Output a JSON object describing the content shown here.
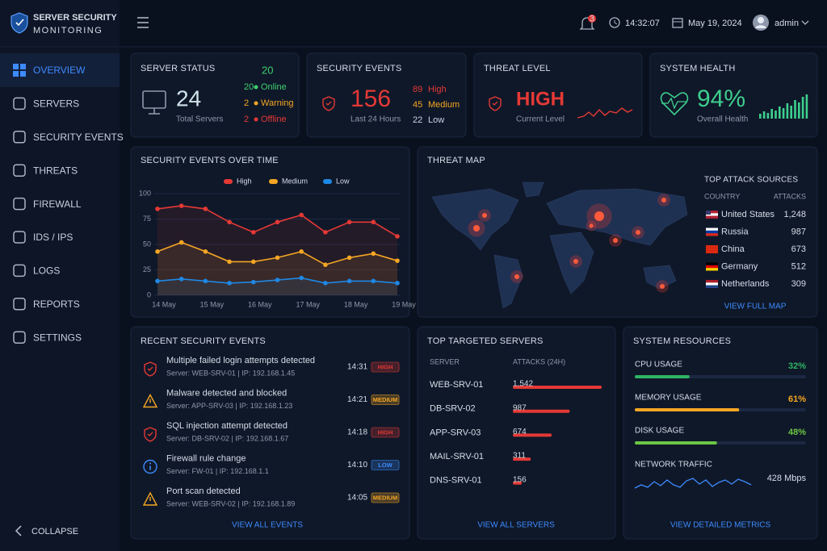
{
  "brand": {
    "title": "SERVER SECURITY",
    "subtitle": "MONITORING"
  },
  "topbar": {
    "notifications": "3",
    "time": "14:32:07",
    "date": "May 19, 2024",
    "user": "admin"
  },
  "nav": {
    "items": [
      "OVERVIEW",
      "SERVERS",
      "SECURITY EVENTS",
      "THREATS",
      "FIREWALL",
      "IDS / IPS",
      "LOGS",
      "REPORTS",
      "SETTINGS"
    ],
    "active": 0,
    "collapse": "COLLAPSE"
  },
  "server_status": {
    "title": "SERVER STATUS",
    "header": "20",
    "total": "24",
    "total_label": "Total Servers",
    "rows": [
      {
        "value": "20",
        "label": "Online",
        "color": "#3ecf6e"
      },
      {
        "value": "2",
        "label": "Warning",
        "color": "#f5a623"
      },
      {
        "value": "2",
        "label": "Offline",
        "color": "#e53935"
      }
    ]
  },
  "security_events": {
    "title": "SECURITY EVENTS",
    "total": "156",
    "total_label": "Last 24 Hours",
    "rows": [
      {
        "value": "89",
        "label": "High",
        "color": "#e53935"
      },
      {
        "value": "45",
        "label": "Medium",
        "color": "#f5a623"
      },
      {
        "value": "22",
        "label": "Low",
        "color": "#c8d4e6"
      }
    ]
  },
  "threat_level": {
    "title": "THREAT LEVEL",
    "value": "HIGH",
    "label": "Current Level"
  },
  "system_health": {
    "title": "SYSTEM HEALTH",
    "value": "94%",
    "label": "Overall Health"
  },
  "chart_data": {
    "type": "line",
    "title": "SECURITY EVENTS OVER TIME",
    "categories": [
      "14 May",
      null,
      "15 May",
      null,
      "16 May",
      null,
      "17 May",
      null,
      "18 May",
      null,
      "19 May"
    ],
    "series": [
      {
        "name": "High",
        "color": "#e53935",
        "values": [
          85,
          88,
          85,
          72,
          62,
          72,
          79,
          62,
          72,
          72,
          58
        ]
      },
      {
        "name": "Medium",
        "color": "#f5a623",
        "values": [
          43,
          52,
          43,
          33,
          33,
          37,
          43,
          30,
          37,
          41,
          34
        ]
      },
      {
        "name": "Low",
        "color": "#1e88e5",
        "values": [
          14,
          16,
          14,
          12,
          13,
          15,
          17,
          12,
          14,
          14,
          12
        ]
      }
    ],
    "ylim": [
      0,
      100
    ],
    "yticks": [
      0,
      25,
      50,
      75,
      100
    ],
    "grid": true,
    "legend": "top"
  },
  "threat_map": {
    "title": "THREAT MAP",
    "sources_title": "TOP ATTACK SOURCES",
    "columns": [
      "COUNTRY",
      "ATTACKS"
    ],
    "rows": [
      [
        "United States",
        "1,248"
      ],
      [
        "Russia",
        "987"
      ],
      [
        "China",
        "673"
      ],
      [
        "Germany",
        "512"
      ],
      [
        "Netherlands",
        "309"
      ]
    ],
    "link": "VIEW FULL MAP"
  },
  "recent_events": {
    "title": "RECENT SECURITY EVENTS",
    "link": "VIEW ALL EVENTS",
    "items": [
      {
        "title": "Multiple failed login attempts detected",
        "detail": "Server: WEB-SRV-01 | IP: 192.168.1.45",
        "time": "14:31",
        "severity": "HIGH",
        "color": "#e53935",
        "icon": "shield"
      },
      {
        "title": "Malware detected and blocked",
        "detail": "Server: APP-SRV-03 | IP: 192.168.1.23",
        "time": "14:21",
        "severity": "MEDIUM",
        "color": "#f5a623",
        "icon": "warning"
      },
      {
        "title": "SQL injection attempt detected",
        "detail": "Server: DB-SRV-02 | IP: 192.168.1.67",
        "time": "14:18",
        "severity": "HIGH",
        "color": "#e53935",
        "icon": "shield"
      },
      {
        "title": "Firewall rule change",
        "detail": "Server: FW-01 | IP: 192.168.1.1",
        "time": "14:10",
        "severity": "LOW",
        "color": "#3d8bfd",
        "icon": "info"
      },
      {
        "title": "Port scan detected",
        "detail": "Server: WEB-SRV-02 | IP: 192.168.1.89",
        "time": "14:05",
        "severity": "MEDIUM",
        "color": "#f5a623",
        "icon": "warning"
      }
    ]
  },
  "targeted_servers": {
    "title": "TOP TARGETED SERVERS",
    "columns": [
      "SERVER",
      "ATTACKS (24H)"
    ],
    "servers": [
      "WEB-SRV-01",
      "DB-SRV-02",
      "APP-SRV-03",
      "MAIL-SRV-01",
      "DNS-SRV-01"
    ],
    "values": [
      1542,
      987,
      674,
      311,
      156
    ],
    "value_labels": [
      "1,542",
      "987",
      "674",
      "311",
      "156"
    ],
    "color": "#e53935",
    "link": "VIEW ALL SERVERS"
  },
  "system_resources": {
    "title": "SYSTEM RESOURCES",
    "items": [
      {
        "label": "CPU USAGE",
        "value": 32,
        "value_label": "32%",
        "color": "#2fb463"
      },
      {
        "label": "MEMORY USAGE",
        "value": 61,
        "value_label": "61%",
        "color": "#f5a623"
      },
      {
        "label": "DISK USAGE",
        "value": 48,
        "value_label": "48%",
        "color": "#6cc644"
      }
    ],
    "network": {
      "label": "NETWORK TRAFFIC",
      "value": "428 Mbps"
    },
    "link": "VIEW DETAILED METRICS"
  }
}
